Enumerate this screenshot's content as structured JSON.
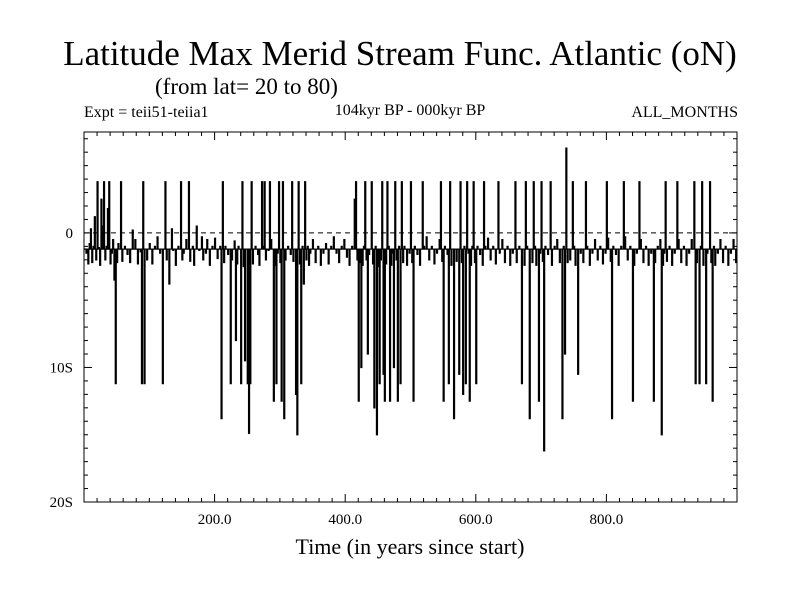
{
  "title": "Latitude Max Merid Stream Func. Atlantic (oN)",
  "subtitle": "(from lat= 20 to 80)",
  "expt": "Expt = teii51-teiia1",
  "period": "104kyr BP - 000kyr BP",
  "months": "ALL_MONTHS",
  "xlabel": "Time (in years since start)",
  "chart_data": {
    "type": "line",
    "xlim": [
      0,
      1000
    ],
    "ylim": [
      -20,
      7.5
    ],
    "x_ticks": [
      200,
      400,
      600,
      800
    ],
    "x_tick_labels": [
      "200.0",
      "400.0",
      "600.0",
      "800.0"
    ],
    "y_ticks": [
      0,
      -10,
      -20
    ],
    "y_tick_labels": [
      "0",
      "10S",
      "20S"
    ],
    "reference_line": 0,
    "baseline": -1.2,
    "events": [
      [
        3,
        -1.5
      ],
      [
        6,
        -2.3
      ],
      [
        8,
        -0.8
      ],
      [
        10,
        0.3
      ],
      [
        12,
        -2.2
      ],
      [
        14,
        -1.0
      ],
      [
        16,
        1.2
      ],
      [
        18,
        -2.0
      ],
      [
        20,
        3.8
      ],
      [
        22,
        -1.1
      ],
      [
        24,
        -2.4
      ],
      [
        26,
        2.5
      ],
      [
        28,
        0.5
      ],
      [
        30,
        3.8
      ],
      [
        32,
        -2.0
      ],
      [
        34,
        -1.0
      ],
      [
        36,
        1.8
      ],
      [
        38,
        3.8
      ],
      [
        40,
        -2.3
      ],
      [
        42,
        -1.5
      ],
      [
        44,
        -0.5
      ],
      [
        46,
        -3.5
      ],
      [
        48,
        -11.2
      ],
      [
        50,
        -2.2
      ],
      [
        52,
        -0.8
      ],
      [
        56,
        3.8
      ],
      [
        58,
        -2.1
      ],
      [
        62,
        -1.0
      ],
      [
        66,
        -1.6
      ],
      [
        70,
        -2.2
      ],
      [
        74,
        0.2
      ],
      [
        78,
        -0.5
      ],
      [
        82,
        -2.3
      ],
      [
        86,
        -1.4
      ],
      [
        88,
        -11.2
      ],
      [
        90,
        3.8
      ],
      [
        92,
        -11.2
      ],
      [
        96,
        -2.0
      ],
      [
        100,
        -0.8
      ],
      [
        104,
        -2.3
      ],
      [
        108,
        -1.0
      ],
      [
        112,
        -0.3
      ],
      [
        116,
        -1.5
      ],
      [
        120,
        -11.2
      ],
      [
        124,
        3.8
      ],
      [
        126,
        -2.0
      ],
      [
        130,
        -3.8
      ],
      [
        134,
        0.3
      ],
      [
        136,
        -1.3
      ],
      [
        140,
        -2.4
      ],
      [
        144,
        -1.0
      ],
      [
        148,
        3.8
      ],
      [
        150,
        -2.0
      ],
      [
        152,
        -1.5
      ],
      [
        156,
        -0.5
      ],
      [
        160,
        3.8
      ],
      [
        162,
        -2.1
      ],
      [
        166,
        -1.0
      ],
      [
        168,
        -2.4
      ],
      [
        172,
        0.5
      ],
      [
        176,
        -1.3
      ],
      [
        180,
        -0.3
      ],
      [
        182,
        -2.0
      ],
      [
        186,
        -1.5
      ],
      [
        188,
        -0.5
      ],
      [
        192,
        -2.4
      ],
      [
        196,
        -1.0
      ],
      [
        200,
        -0.4
      ],
      [
        204,
        -1.9
      ],
      [
        208,
        -1.0
      ],
      [
        210,
        -13.8
      ],
      [
        212,
        3.8
      ],
      [
        214,
        -2.2
      ],
      [
        216,
        -1.0
      ],
      [
        220,
        -1.6
      ],
      [
        224,
        -11.2
      ],
      [
        226,
        -2.0
      ],
      [
        230,
        -0.6
      ],
      [
        232,
        -8.0
      ],
      [
        234,
        -2.3
      ],
      [
        236,
        -1.0
      ],
      [
        240,
        -11.2
      ],
      [
        242,
        3.8
      ],
      [
        244,
        -2.5
      ],
      [
        246,
        -9.5
      ],
      [
        250,
        -11.2
      ],
      [
        252,
        -14.9
      ],
      [
        254,
        -11.2
      ],
      [
        256,
        3.8
      ],
      [
        258,
        -2.3
      ],
      [
        262,
        -1.0
      ],
      [
        266,
        -1.6
      ],
      [
        268,
        -2.4
      ],
      [
        272,
        3.8
      ],
      [
        274,
        -1.0
      ],
      [
        276,
        3.8
      ],
      [
        278,
        -2.0
      ],
      [
        282,
        -1.3
      ],
      [
        284,
        3.8
      ],
      [
        286,
        -0.5
      ],
      [
        290,
        -12.5
      ],
      [
        292,
        -2.4
      ],
      [
        294,
        -11.2
      ],
      [
        296,
        -1.5
      ],
      [
        298,
        3.8
      ],
      [
        300,
        -2.2
      ],
      [
        302,
        -12.5
      ],
      [
        304,
        3.8
      ],
      [
        306,
        -13.8
      ],
      [
        308,
        -2.0
      ],
      [
        312,
        -1.0
      ],
      [
        316,
        -1.6
      ],
      [
        318,
        3.8
      ],
      [
        320,
        -2.1
      ],
      [
        324,
        -12.0
      ],
      [
        326,
        -15.0
      ],
      [
        328,
        3.8
      ],
      [
        330,
        -2.3
      ],
      [
        332,
        -11.2
      ],
      [
        334,
        -1.0
      ],
      [
        336,
        -3.8
      ],
      [
        338,
        3.8
      ],
      [
        340,
        -2.0
      ],
      [
        342,
        -1.0
      ],
      [
        344,
        -2.4
      ],
      [
        346,
        -1.5
      ],
      [
        350,
        -0.5
      ],
      [
        354,
        -2.2
      ],
      [
        358,
        -1.0
      ],
      [
        362,
        -2.4
      ],
      [
        366,
        -1.5
      ],
      [
        370,
        -0.8
      ],
      [
        374,
        -2.3
      ],
      [
        378,
        -1.0
      ],
      [
        382,
        -0.3
      ],
      [
        386,
        -1.5
      ],
      [
        390,
        -2.2
      ],
      [
        394,
        -1.0
      ],
      [
        398,
        -0.5
      ],
      [
        402,
        -1.8
      ],
      [
        406,
        -2.4
      ],
      [
        410,
        -1.0
      ],
      [
        414,
        2.5
      ],
      [
        416,
        3.8
      ],
      [
        418,
        -2.0
      ],
      [
        420,
        -12.5
      ],
      [
        422,
        -2.2
      ],
      [
        424,
        -10.0
      ],
      [
        426,
        -2.4
      ],
      [
        428,
        -1.0
      ],
      [
        430,
        3.8
      ],
      [
        432,
        -2.0
      ],
      [
        434,
        -9.0
      ],
      [
        436,
        -1.6
      ],
      [
        440,
        3.8
      ],
      [
        442,
        -2.3
      ],
      [
        444,
        -13.0
      ],
      [
        446,
        -1.0
      ],
      [
        448,
        -15.0
      ],
      [
        450,
        -2.5
      ],
      [
        452,
        -11.2
      ],
      [
        454,
        -2.0
      ],
      [
        456,
        3.8
      ],
      [
        458,
        -10.5
      ],
      [
        460,
        -12.5
      ],
      [
        462,
        -2.3
      ],
      [
        464,
        3.8
      ],
      [
        466,
        -1.0
      ],
      [
        468,
        -12.5
      ],
      [
        470,
        -2.4
      ],
      [
        472,
        -1.5
      ],
      [
        474,
        -10.0
      ],
      [
        476,
        3.8
      ],
      [
        478,
        -2.0
      ],
      [
        480,
        -12.5
      ],
      [
        482,
        -1.0
      ],
      [
        484,
        -11.2
      ],
      [
        486,
        3.8
      ],
      [
        488,
        -2.2
      ],
      [
        490,
        -1.0
      ],
      [
        494,
        -2.4
      ],
      [
        498,
        -1.5
      ],
      [
        500,
        3.8
      ],
      [
        502,
        -2.2
      ],
      [
        504,
        -12.5
      ],
      [
        506,
        -1.0
      ],
      [
        510,
        -1.6
      ],
      [
        514,
        -2.4
      ],
      [
        518,
        3.8
      ],
      [
        520,
        -1.0
      ],
      [
        524,
        -0.3
      ],
      [
        528,
        -2.0
      ],
      [
        532,
        -1.0
      ],
      [
        536,
        -2.3
      ],
      [
        540,
        -1.5
      ],
      [
        544,
        -0.5
      ],
      [
        546,
        3.8
      ],
      [
        548,
        -2.1
      ],
      [
        550,
        -12.5
      ],
      [
        552,
        -1.0
      ],
      [
        556,
        -1.6
      ],
      [
        558,
        -11.2
      ],
      [
        560,
        3.8
      ],
      [
        562,
        -2.4
      ],
      [
        566,
        -13.8
      ],
      [
        570,
        -2.1
      ],
      [
        574,
        -10.5
      ],
      [
        576,
        3.8
      ],
      [
        578,
        -2.2
      ],
      [
        580,
        -12.0
      ],
      [
        582,
        -1.0
      ],
      [
        584,
        -11.2
      ],
      [
        586,
        3.8
      ],
      [
        588,
        -1.5
      ],
      [
        590,
        -12.5
      ],
      [
        592,
        -2.4
      ],
      [
        594,
        -1.0
      ],
      [
        596,
        3.8
      ],
      [
        598,
        -2.2
      ],
      [
        600,
        -11.2
      ],
      [
        602,
        -1.0
      ],
      [
        606,
        -1.6
      ],
      [
        610,
        -2.4
      ],
      [
        612,
        3.8
      ],
      [
        614,
        -1.0
      ],
      [
        618,
        -0.4
      ],
      [
        622,
        -2.0
      ],
      [
        626,
        -1.0
      ],
      [
        630,
        -2.3
      ],
      [
        634,
        3.8
      ],
      [
        636,
        -1.5
      ],
      [
        640,
        -0.5
      ],
      [
        644,
        -2.2
      ],
      [
        648,
        -1.0
      ],
      [
        652,
        -2.4
      ],
      [
        656,
        -1.5
      ],
      [
        660,
        3.8
      ],
      [
        662,
        -2.2
      ],
      [
        666,
        -1.0
      ],
      [
        670,
        -11.2
      ],
      [
        674,
        -2.4
      ],
      [
        676,
        3.8
      ],
      [
        678,
        -1.0
      ],
      [
        682,
        -13.8
      ],
      [
        686,
        -2.2
      ],
      [
        688,
        3.8
      ],
      [
        690,
        -1.0
      ],
      [
        692,
        -2.4
      ],
      [
        696,
        -12.5
      ],
      [
        698,
        -1.5
      ],
      [
        700,
        3.8
      ],
      [
        702,
        -2.1
      ],
      [
        704,
        -16.2
      ],
      [
        706,
        -1.0
      ],
      [
        710,
        -1.6
      ],
      [
        714,
        3.8
      ],
      [
        716,
        -2.4
      ],
      [
        720,
        -1.0
      ],
      [
        724,
        -0.5
      ],
      [
        728,
        -2.2
      ],
      [
        732,
        -13.8
      ],
      [
        734,
        -1.0
      ],
      [
        736,
        -9.0
      ],
      [
        738,
        6.3
      ],
      [
        740,
        -2.2
      ],
      [
        744,
        -2.0
      ],
      [
        748,
        3.8
      ],
      [
        750,
        -1.0
      ],
      [
        752,
        -2.4
      ],
      [
        756,
        -10.5
      ],
      [
        760,
        -1.5
      ],
      [
        764,
        -2.2
      ],
      [
        768,
        3.8
      ],
      [
        770,
        -1.0
      ],
      [
        774,
        -2.4
      ],
      [
        778,
        -1.5
      ],
      [
        782,
        -0.5
      ],
      [
        786,
        -2.0
      ],
      [
        790,
        -1.0
      ],
      [
        794,
        -2.3
      ],
      [
        798,
        -1.5
      ],
      [
        800,
        3.8
      ],
      [
        802,
        -0.4
      ],
      [
        806,
        -2.1
      ],
      [
        808,
        -13.8
      ],
      [
        810,
        -1.0
      ],
      [
        814,
        -1.6
      ],
      [
        818,
        -2.4
      ],
      [
        822,
        -1.0
      ],
      [
        826,
        3.8
      ],
      [
        828,
        -0.3
      ],
      [
        832,
        -2.0
      ],
      [
        836,
        -1.0
      ],
      [
        840,
        -12.5
      ],
      [
        842,
        -2.4
      ],
      [
        846,
        -1.5
      ],
      [
        850,
        3.8
      ],
      [
        852,
        -0.5
      ],
      [
        856,
        -2.2
      ],
      [
        860,
        -1.0
      ],
      [
        864,
        -2.4
      ],
      [
        868,
        -1.5
      ],
      [
        872,
        -12.5
      ],
      [
        874,
        -2.2
      ],
      [
        878,
        -1.0
      ],
      [
        882,
        -0.5
      ],
      [
        884,
        -15.0
      ],
      [
        886,
        -2.4
      ],
      [
        888,
        -1.5
      ],
      [
        890,
        3.8
      ],
      [
        892,
        -2.1
      ],
      [
        896,
        -1.0
      ],
      [
        900,
        -2.4
      ],
      [
        904,
        -1.5
      ],
      [
        908,
        3.8
      ],
      [
        910,
        -0.5
      ],
      [
        914,
        -2.2
      ],
      [
        918,
        -1.0
      ],
      [
        922,
        -2.4
      ],
      [
        926,
        -1.5
      ],
      [
        930,
        -0.5
      ],
      [
        934,
        3.8
      ],
      [
        936,
        -11.2
      ],
      [
        938,
        -2.2
      ],
      [
        942,
        -11.2
      ],
      [
        944,
        -1.0
      ],
      [
        946,
        3.8
      ],
      [
        948,
        -2.4
      ],
      [
        952,
        -11.2
      ],
      [
        954,
        -1.5
      ],
      [
        958,
        3.8
      ],
      [
        960,
        -2.2
      ],
      [
        962,
        -12.5
      ],
      [
        964,
        -1.0
      ],
      [
        966,
        -2.4
      ],
      [
        970,
        -1.5
      ],
      [
        974,
        -0.5
      ],
      [
        978,
        -2.2
      ],
      [
        982,
        -1.0
      ],
      [
        986,
        -2.4
      ],
      [
        990,
        -1.5
      ],
      [
        994,
        -0.5
      ],
      [
        998,
        -2.2
      ]
    ]
  }
}
